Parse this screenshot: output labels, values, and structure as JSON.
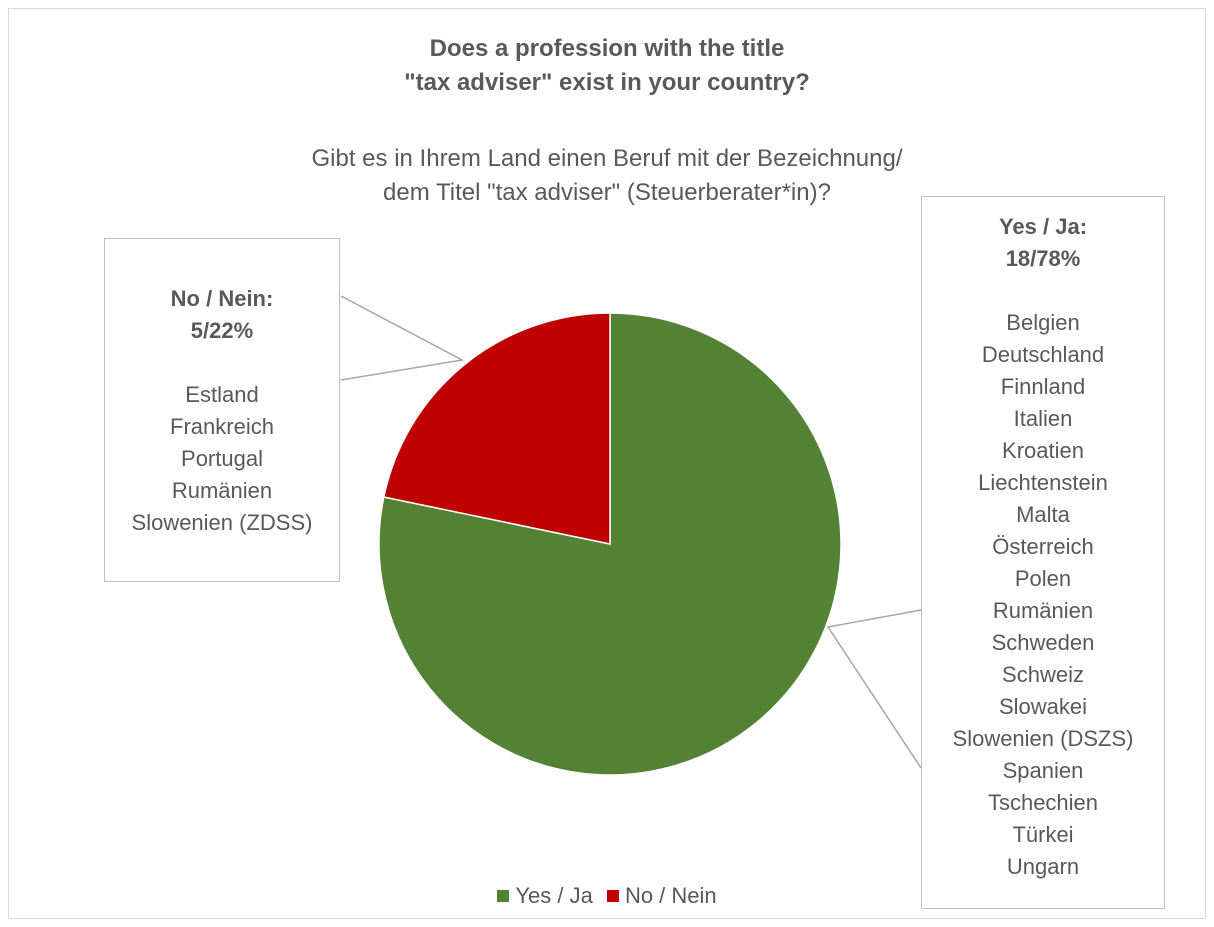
{
  "chart_data": {
    "type": "pie",
    "title": "Does a profession with the title \"tax adviser\" exist in your country?",
    "title_lines": [
      "Does a profession with the title",
      "\"tax adviser\" exist in your country?"
    ],
    "subtitle_lines": [
      "Gibt es in Ihrem Land einen Beruf mit der Bezeichnung/",
      "dem Titel \"tax adviser\" (Steuerberater*in)?"
    ],
    "slices": [
      {
        "name": "Yes / Ja",
        "value": 18,
        "percent": 78,
        "color": "#548235",
        "label_lines": [
          "Yes / Ja:",
          "18/78%"
        ],
        "countries": [
          "Belgien",
          "Deutschland",
          "Finnland",
          "Italien",
          "Kroatien",
          "Liechtenstein",
          "Malta",
          "Österreich",
          "Polen",
          "Rumänien",
          "Schweden",
          "Schweiz",
          "Slowakei",
          "Slowenien (DSZS)",
          "Spanien",
          "Tschechien",
          "Türkei",
          "Ungarn"
        ]
      },
      {
        "name": "No / Nein",
        "value": 5,
        "percent": 22,
        "color": "#c00000",
        "label_lines": [
          "No / Nein:",
          "5/22%"
        ],
        "countries": [
          "Estland",
          "Frankreich",
          "Portugal",
          "Rumänien",
          "Slowenien (ZDSS)"
        ]
      }
    ],
    "legend_position": "bottom"
  }
}
